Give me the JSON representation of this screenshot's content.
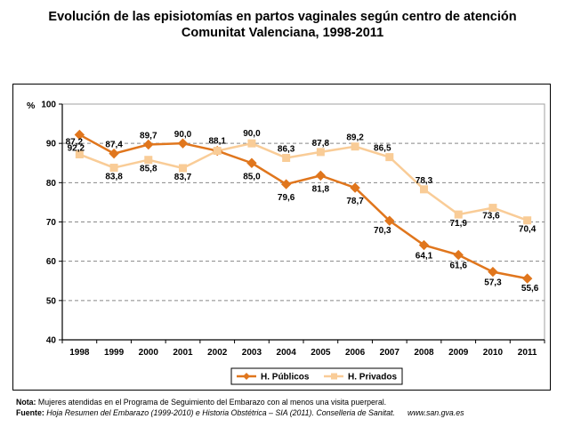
{
  "title_line1": "Evolución de las episiotomías en partos vaginales según centro de atención",
  "title_line2": "Comunitat Valenciana, 1998-2011",
  "chart_data": {
    "type": "line",
    "title": "Evolución de las episiotomías en partos vaginales según centro de atención Comunitat Valenciana, 1998-2011",
    "ylabel": "%",
    "xlabel": "",
    "ylim": [
      40,
      100
    ],
    "yticks": [
      "40",
      "50",
      "60",
      "70",
      "80",
      "90",
      "100"
    ],
    "x": [
      "1998",
      "1999",
      "2000",
      "2001",
      "2002",
      "2003",
      "2004",
      "2005",
      "2006",
      "2007",
      "2008",
      "2009",
      "2010",
      "2011"
    ],
    "grid": "horizontal dashed",
    "legend_position": "bottom",
    "series": [
      {
        "name": "H. Públicos",
        "color": "#e0761d",
        "marker": "diamond",
        "values": [
          92.2,
          87.4,
          89.7,
          90.0,
          88.1,
          85.0,
          79.6,
          81.8,
          78.7,
          70.3,
          64.1,
          61.6,
          57.3,
          55.6
        ],
        "labels": [
          "92,2",
          "87,4",
          "89,7",
          "90,0",
          "88,1",
          "85,0",
          "79,6",
          "81,8",
          "78,7",
          "70,3",
          "64,1",
          "61,6",
          "57,3",
          "55,6"
        ]
      },
      {
        "name": "H. Privados",
        "color": "#f9cc97",
        "marker": "square",
        "values": [
          87.2,
          83.8,
          85.8,
          83.7,
          88.1,
          90.0,
          86.3,
          87.8,
          89.2,
          86.5,
          78.3,
          71.9,
          73.6,
          70.4
        ],
        "labels": [
          "87,2",
          "83,8",
          "85,8",
          "83,7",
          "",
          "90,0",
          "86,3",
          "87,8",
          "89,2",
          "86,5",
          "78,3",
          "71,9",
          "73,6",
          "70,4"
        ]
      }
    ]
  },
  "footer": {
    "nota_label": "Nota:",
    "nota_text": " Mujeres atendidas en el Programa de Seguimiento del Embarazo con al menos una visita puerperal.",
    "fuente_label": "Fuente:",
    "fuente_text": " Hoja Resumen del Embarazo (1999-2010) e Historia Obstétrica – SIA (2011). Conselleria de Sanitat.",
    "url": "www.san.gva.es"
  }
}
